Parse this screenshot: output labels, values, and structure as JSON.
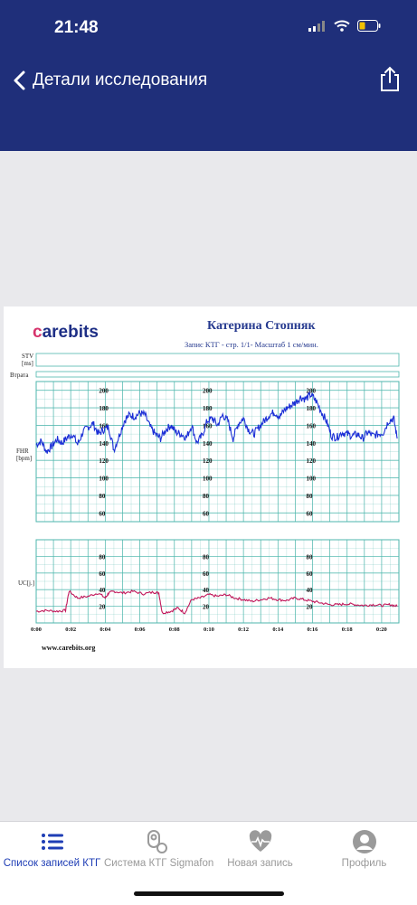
{
  "status_bar": {
    "time": "21:48"
  },
  "header": {
    "title": "Детали исследования"
  },
  "document": {
    "logo_prefix": "c",
    "logo_rest": "arebits",
    "patient_name": "Катерина  Стопняк",
    "subtitle": "Запис КТГ  - стр. 1/1- Масштаб 1 см/мин.",
    "website": "www.carebits.org",
    "labels": {
      "stv": "STV",
      "stv_unit": "[ms]",
      "loss": "Втрата",
      "fhr": "FHR",
      "fhr_unit": "[bpm]",
      "uc": "UC[j.]"
    }
  },
  "chart_data": [
    {
      "type": "line",
      "ylabel": "FHR [bpm]",
      "ylim": [
        50,
        210
      ],
      "y_ticks": [
        60,
        80,
        100,
        120,
        140,
        160,
        180,
        200
      ],
      "x_ticks": [
        "0:00",
        "0:02",
        "0:04",
        "0:06",
        "0:08",
        "0:10",
        "0:12",
        "0:14",
        "0:16",
        "0:18",
        "0:20"
      ],
      "xlim_min": [
        0,
        21
      ],
      "grid": true,
      "series": [
        {
          "color": "#1b2fd6",
          "x": [
            0,
            0.3,
            0.6,
            0.9,
            1.2,
            1.5,
            1.8,
            2.1,
            2.4,
            2.7,
            3.0,
            3.3,
            3.6,
            3.9,
            4.2,
            4.5,
            4.8,
            5.1,
            5.4,
            5.7,
            6.0,
            6.3,
            6.6,
            6.9,
            7.2,
            7.5,
            7.8,
            8.1,
            8.4,
            8.7,
            9.0,
            9.3,
            9.6,
            9.9,
            10.2,
            10.5,
            10.8,
            11.1,
            11.4,
            11.7,
            12.0,
            12.3,
            12.6,
            12.9,
            13.2,
            13.5,
            13.8,
            14.1,
            14.4,
            14.7,
            15.0,
            15.3,
            15.6,
            15.9,
            16.2,
            16.5,
            16.8,
            17.1,
            17.4,
            17.7,
            18.0,
            18.3,
            18.6,
            18.9,
            19.2,
            19.5,
            19.8,
            20.1,
            20.4,
            20.7,
            20.9
          ],
          "values": [
            138,
            142,
            130,
            136,
            144,
            140,
            146,
            150,
            138,
            152,
            158,
            162,
            150,
            155,
            158,
            132,
            148,
            165,
            172,
            170,
            174,
            172,
            158,
            150,
            145,
            155,
            160,
            152,
            150,
            146,
            160,
            140,
            148,
            165,
            168,
            160,
            172,
            165,
            145,
            162,
            168,
            155,
            150,
            158,
            165,
            172,
            175,
            170,
            178,
            182,
            186,
            192,
            190,
            195,
            188,
            176,
            165,
            148,
            146,
            152,
            150,
            148,
            150,
            145,
            152,
            148,
            150,
            152,
            165,
            168,
            145
          ]
        }
      ]
    },
    {
      "type": "line",
      "ylabel": "UC[j.]",
      "ylim": [
        0,
        100
      ],
      "y_ticks": [
        20,
        40,
        60,
        80
      ],
      "x_ticks": [
        "0:00",
        "0:02",
        "0:04",
        "0:06",
        "0:08",
        "0:10",
        "0:12",
        "0:14",
        "0:16",
        "0:18",
        "0:20"
      ],
      "xlim_min": [
        0,
        21
      ],
      "grid": true,
      "series": [
        {
          "color": "#c2185b",
          "x": [
            0,
            0.6,
            1.2,
            1.7,
            1.9,
            2.4,
            3.0,
            3.6,
            4.0,
            4.2,
            4.5,
            5.0,
            5.6,
            6.2,
            6.8,
            7.1,
            7.3,
            7.8,
            8.2,
            8.6,
            9.0,
            9.5,
            10.0,
            10.5,
            11.0,
            11.5,
            12.0,
            12.5,
            13.0,
            13.5,
            14.0,
            14.5,
            15.0,
            15.5,
            16.0,
            16.5,
            17.0,
            17.5,
            18.0,
            18.5,
            19.0,
            19.5,
            20.0,
            20.5,
            20.9
          ],
          "values": [
            14,
            15,
            14,
            15,
            38,
            30,
            32,
            36,
            30,
            36,
            38,
            36,
            38,
            35,
            37,
            36,
            12,
            14,
            18,
            12,
            28,
            30,
            34,
            32,
            34,
            30,
            28,
            26,
            28,
            30,
            28,
            27,
            30,
            28,
            26,
            24,
            22,
            22,
            23,
            22,
            21,
            22,
            21,
            22,
            20
          ]
        }
      ]
    }
  ],
  "tab_bar": {
    "items": [
      {
        "label": "Список записей КТГ",
        "icon": "list-icon",
        "active": true
      },
      {
        "label": "Система КТГ Sigmafon",
        "icon": "device-icon",
        "active": false
      },
      {
        "label": "Новая запись",
        "icon": "heart-pulse-icon",
        "active": false
      },
      {
        "label": "Профиль",
        "icon": "profile-icon",
        "active": false
      }
    ]
  },
  "colors": {
    "header_bg": "#1f2f7a",
    "accent_active": "#1e3db5",
    "inactive": "#9a9a9a",
    "grid": "#4db6ac"
  }
}
